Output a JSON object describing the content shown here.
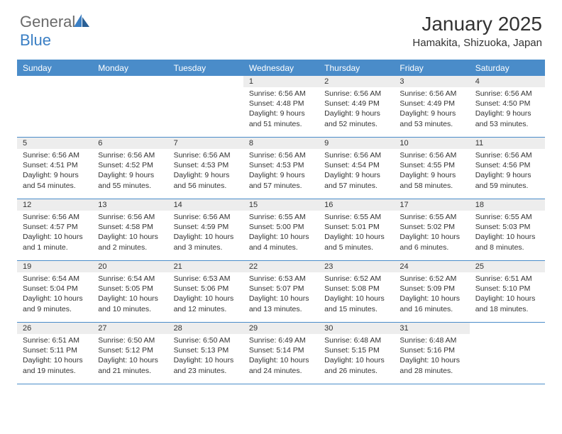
{
  "brand": {
    "part1": "General",
    "part2": "Blue"
  },
  "title": "January 2025",
  "location": "Hamakita, Shizuoka, Japan",
  "colors": {
    "header_bg": "#4a8cc9",
    "header_text": "#ffffff",
    "daynum_bg": "#ededed",
    "text": "#333333",
    "logo_gray": "#6a6a6a",
    "logo_blue": "#3b7fc4",
    "border": "#4a8cc9"
  },
  "day_names": [
    "Sunday",
    "Monday",
    "Tuesday",
    "Wednesday",
    "Thursday",
    "Friday",
    "Saturday"
  ],
  "weeks": [
    [
      {
        "n": "",
        "sr": "",
        "ss": "",
        "dl": ""
      },
      {
        "n": "",
        "sr": "",
        "ss": "",
        "dl": ""
      },
      {
        "n": "",
        "sr": "",
        "ss": "",
        "dl": ""
      },
      {
        "n": "1",
        "sr": "Sunrise: 6:56 AM",
        "ss": "Sunset: 4:48 PM",
        "dl": "Daylight: 9 hours and 51 minutes."
      },
      {
        "n": "2",
        "sr": "Sunrise: 6:56 AM",
        "ss": "Sunset: 4:49 PM",
        "dl": "Daylight: 9 hours and 52 minutes."
      },
      {
        "n": "3",
        "sr": "Sunrise: 6:56 AM",
        "ss": "Sunset: 4:49 PM",
        "dl": "Daylight: 9 hours and 53 minutes."
      },
      {
        "n": "4",
        "sr": "Sunrise: 6:56 AM",
        "ss": "Sunset: 4:50 PM",
        "dl": "Daylight: 9 hours and 53 minutes."
      }
    ],
    [
      {
        "n": "5",
        "sr": "Sunrise: 6:56 AM",
        "ss": "Sunset: 4:51 PM",
        "dl": "Daylight: 9 hours and 54 minutes."
      },
      {
        "n": "6",
        "sr": "Sunrise: 6:56 AM",
        "ss": "Sunset: 4:52 PM",
        "dl": "Daylight: 9 hours and 55 minutes."
      },
      {
        "n": "7",
        "sr": "Sunrise: 6:56 AM",
        "ss": "Sunset: 4:53 PM",
        "dl": "Daylight: 9 hours and 56 minutes."
      },
      {
        "n": "8",
        "sr": "Sunrise: 6:56 AM",
        "ss": "Sunset: 4:53 PM",
        "dl": "Daylight: 9 hours and 57 minutes."
      },
      {
        "n": "9",
        "sr": "Sunrise: 6:56 AM",
        "ss": "Sunset: 4:54 PM",
        "dl": "Daylight: 9 hours and 57 minutes."
      },
      {
        "n": "10",
        "sr": "Sunrise: 6:56 AM",
        "ss": "Sunset: 4:55 PM",
        "dl": "Daylight: 9 hours and 58 minutes."
      },
      {
        "n": "11",
        "sr": "Sunrise: 6:56 AM",
        "ss": "Sunset: 4:56 PM",
        "dl": "Daylight: 9 hours and 59 minutes."
      }
    ],
    [
      {
        "n": "12",
        "sr": "Sunrise: 6:56 AM",
        "ss": "Sunset: 4:57 PM",
        "dl": "Daylight: 10 hours and 1 minute."
      },
      {
        "n": "13",
        "sr": "Sunrise: 6:56 AM",
        "ss": "Sunset: 4:58 PM",
        "dl": "Daylight: 10 hours and 2 minutes."
      },
      {
        "n": "14",
        "sr": "Sunrise: 6:56 AM",
        "ss": "Sunset: 4:59 PM",
        "dl": "Daylight: 10 hours and 3 minutes."
      },
      {
        "n": "15",
        "sr": "Sunrise: 6:55 AM",
        "ss": "Sunset: 5:00 PM",
        "dl": "Daylight: 10 hours and 4 minutes."
      },
      {
        "n": "16",
        "sr": "Sunrise: 6:55 AM",
        "ss": "Sunset: 5:01 PM",
        "dl": "Daylight: 10 hours and 5 minutes."
      },
      {
        "n": "17",
        "sr": "Sunrise: 6:55 AM",
        "ss": "Sunset: 5:02 PM",
        "dl": "Daylight: 10 hours and 6 minutes."
      },
      {
        "n": "18",
        "sr": "Sunrise: 6:55 AM",
        "ss": "Sunset: 5:03 PM",
        "dl": "Daylight: 10 hours and 8 minutes."
      }
    ],
    [
      {
        "n": "19",
        "sr": "Sunrise: 6:54 AM",
        "ss": "Sunset: 5:04 PM",
        "dl": "Daylight: 10 hours and 9 minutes."
      },
      {
        "n": "20",
        "sr": "Sunrise: 6:54 AM",
        "ss": "Sunset: 5:05 PM",
        "dl": "Daylight: 10 hours and 10 minutes."
      },
      {
        "n": "21",
        "sr": "Sunrise: 6:53 AM",
        "ss": "Sunset: 5:06 PM",
        "dl": "Daylight: 10 hours and 12 minutes."
      },
      {
        "n": "22",
        "sr": "Sunrise: 6:53 AM",
        "ss": "Sunset: 5:07 PM",
        "dl": "Daylight: 10 hours and 13 minutes."
      },
      {
        "n": "23",
        "sr": "Sunrise: 6:52 AM",
        "ss": "Sunset: 5:08 PM",
        "dl": "Daylight: 10 hours and 15 minutes."
      },
      {
        "n": "24",
        "sr": "Sunrise: 6:52 AM",
        "ss": "Sunset: 5:09 PM",
        "dl": "Daylight: 10 hours and 16 minutes."
      },
      {
        "n": "25",
        "sr": "Sunrise: 6:51 AM",
        "ss": "Sunset: 5:10 PM",
        "dl": "Daylight: 10 hours and 18 minutes."
      }
    ],
    [
      {
        "n": "26",
        "sr": "Sunrise: 6:51 AM",
        "ss": "Sunset: 5:11 PM",
        "dl": "Daylight: 10 hours and 19 minutes."
      },
      {
        "n": "27",
        "sr": "Sunrise: 6:50 AM",
        "ss": "Sunset: 5:12 PM",
        "dl": "Daylight: 10 hours and 21 minutes."
      },
      {
        "n": "28",
        "sr": "Sunrise: 6:50 AM",
        "ss": "Sunset: 5:13 PM",
        "dl": "Daylight: 10 hours and 23 minutes."
      },
      {
        "n": "29",
        "sr": "Sunrise: 6:49 AM",
        "ss": "Sunset: 5:14 PM",
        "dl": "Daylight: 10 hours and 24 minutes."
      },
      {
        "n": "30",
        "sr": "Sunrise: 6:48 AM",
        "ss": "Sunset: 5:15 PM",
        "dl": "Daylight: 10 hours and 26 minutes."
      },
      {
        "n": "31",
        "sr": "Sunrise: 6:48 AM",
        "ss": "Sunset: 5:16 PM",
        "dl": "Daylight: 10 hours and 28 minutes."
      },
      {
        "n": "",
        "sr": "",
        "ss": "",
        "dl": ""
      }
    ]
  ]
}
